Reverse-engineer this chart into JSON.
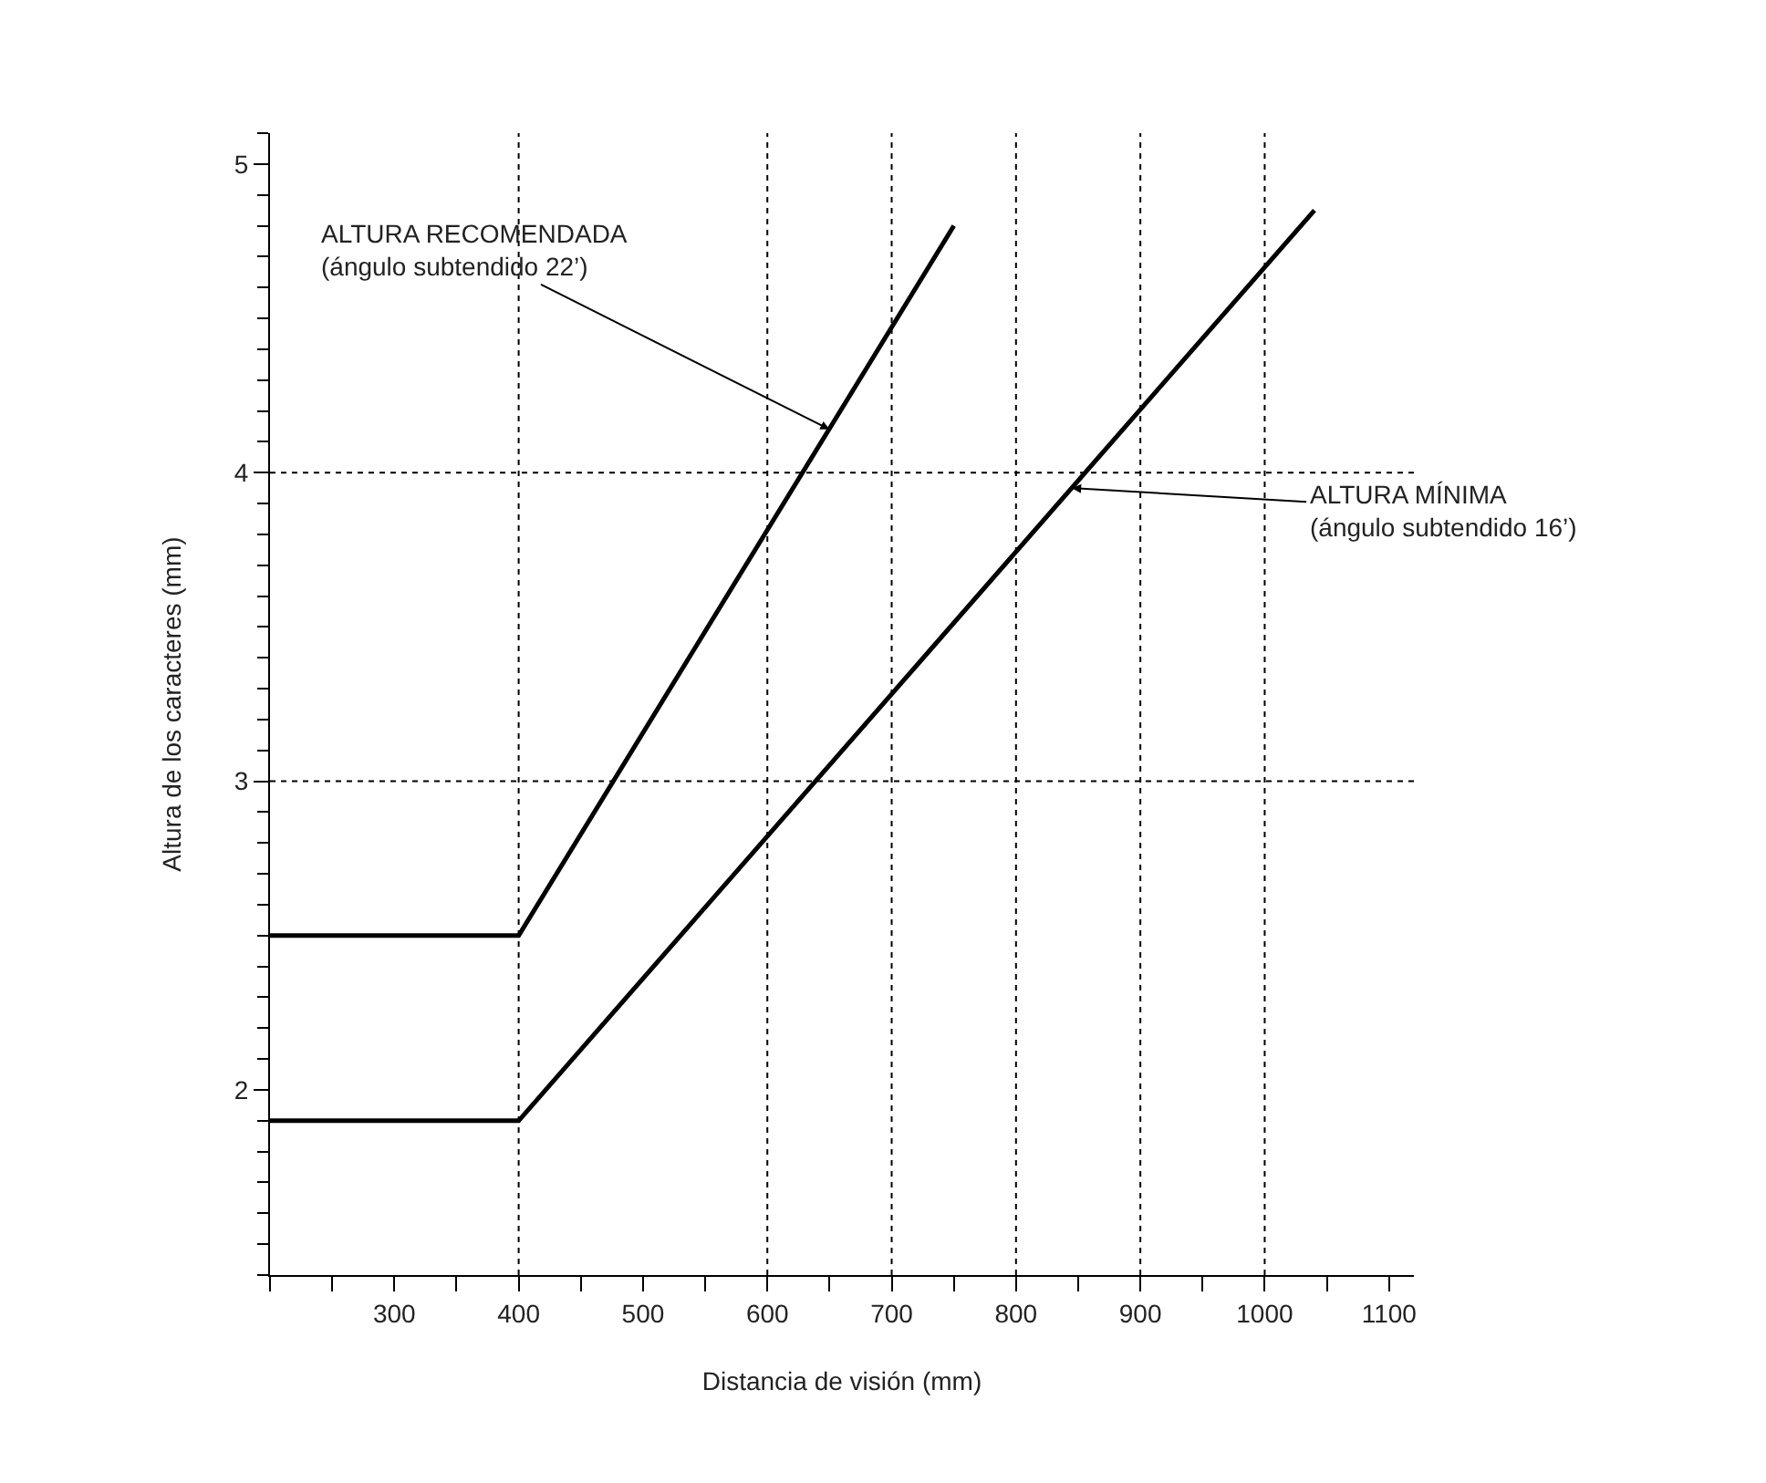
{
  "chart_data": {
    "type": "line",
    "xlabel": "Distancia de visión (mm)",
    "ylabel": "Altura de los caracteres (mm)",
    "xlim": [
      200,
      1120
    ],
    "xticks": [
      300,
      400,
      500,
      600,
      700,
      800,
      900,
      1000,
      1100
    ],
    "ylim": [
      1.4,
      5.1
    ],
    "yticks": [
      2,
      3,
      4,
      5
    ],
    "grid": false,
    "marker": "none",
    "line_style": "solid",
    "series": [
      {
        "color": "#000000",
        "x": [
          200,
          400,
          750
        ],
        "values": [
          2.5,
          2.5,
          4.8
        ]
      },
      {
        "color": "#000000",
        "x": [
          200,
          400,
          1040
        ],
        "values": [
          1.9,
          1.9,
          4.85
        ]
      }
    ],
    "ref_lines": [
      {
        "axis": "x",
        "value": 400,
        "line_style": "dotted",
        "color": "#000000"
      },
      {
        "axis": "x",
        "value": 600,
        "line_style": "dotted",
        "color": "#000000"
      },
      {
        "axis": "x",
        "value": 700,
        "line_style": "dotted",
        "color": "#000000"
      },
      {
        "axis": "x",
        "value": 800,
        "line_style": "dotted",
        "color": "#000000"
      },
      {
        "axis": "x",
        "value": 900,
        "line_style": "dotted",
        "color": "#000000"
      },
      {
        "axis": "x",
        "value": 1000,
        "line_style": "dotted",
        "color": "#000000"
      },
      {
        "axis": "y",
        "value": 3,
        "line_style": "dotted",
        "color": "#000000"
      },
      {
        "axis": "y",
        "value": 4,
        "line_style": "dotted",
        "color": "#000000"
      }
    ],
    "annotations": [
      {
        "text": "ALTURA RECOMENDADA\n(ángulo subtendido 22’)",
        "x": 650,
        "y": 4.14
      },
      {
        "text": "ALTURA MÍNIMA\n(ángulo subtendido 16’)",
        "x": 845,
        "y": 3.95
      }
    ]
  }
}
